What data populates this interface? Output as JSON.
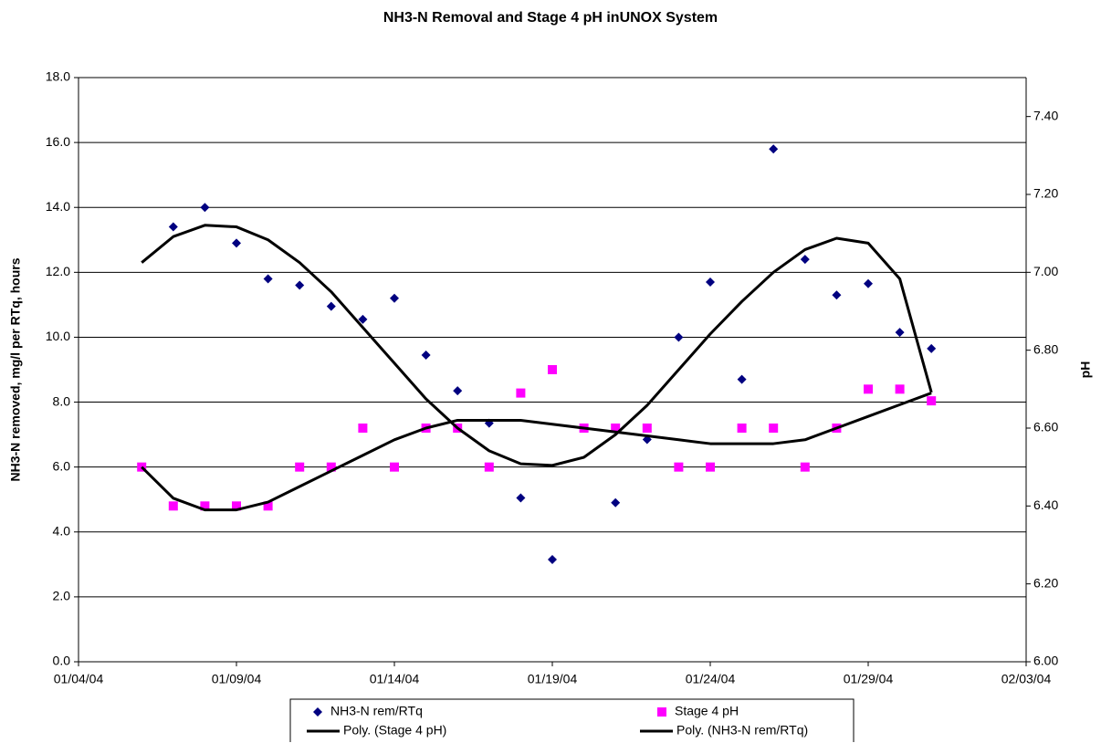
{
  "chart_data": {
    "type": "scatter",
    "title": "NH3-N Removal and Stage 4 pH inUNOX System",
    "y_label": "NH3-N removed, mg/l per RTq, hours",
    "y2_label": "pH",
    "x": [
      "01/06/04",
      "01/07/04",
      "01/08/04",
      "01/09/04",
      "01/10/04",
      "01/11/04",
      "01/12/04",
      "01/13/04",
      "01/14/04",
      "01/15/04",
      "01/16/04",
      "01/17/04",
      "01/18/04",
      "01/19/04",
      "01/20/04",
      "01/21/04",
      "01/22/04",
      "01/23/04",
      "01/24/04",
      "01/25/04",
      "01/26/04",
      "01/27/04",
      "01/28/04",
      "01/29/04",
      "01/30/04",
      "01/31/04"
    ],
    "xlim": [
      "01/04/04",
      "02/03/04"
    ],
    "xticks": [
      "01/04/04",
      "01/09/04",
      "01/14/04",
      "01/19/04",
      "01/24/04",
      "01/29/04",
      "02/03/04"
    ],
    "ylim": [
      0,
      18
    ],
    "yticks": [
      {
        "value": 0,
        "label": "0.0"
      },
      {
        "value": 2,
        "label": "2.0"
      },
      {
        "value": 4,
        "label": "4.0"
      },
      {
        "value": 6,
        "label": "6.0"
      },
      {
        "value": 8,
        "label": "8.0"
      },
      {
        "value": 10,
        "label": "10.0"
      },
      {
        "value": 12,
        "label": "12.0"
      },
      {
        "value": 14,
        "label": "14.0"
      },
      {
        "value": 16,
        "label": "16.0"
      },
      {
        "value": 18,
        "label": "18.0"
      }
    ],
    "y2lim": [
      6,
      7.5
    ],
    "y2ticks": [
      {
        "value": 6,
        "label": "6.00"
      },
      {
        "value": 6.2,
        "label": "6.20"
      },
      {
        "value": 6.4,
        "label": "6.40"
      },
      {
        "value": 6.6,
        "label": "6.60"
      },
      {
        "value": 6.8,
        "label": "6.80"
      },
      {
        "value": 7,
        "label": "7.00"
      },
      {
        "value": 7.2,
        "label": "7.20"
      },
      {
        "value": 7.4,
        "label": "7.40"
      }
    ],
    "grid": true,
    "legend": "bottom",
    "series": [
      {
        "name": "NH3-N rem/RTq",
        "color": "#000080",
        "marker": "diamond",
        "values": [
          null,
          13.4,
          14.0,
          12.9,
          11.8,
          11.6,
          10.95,
          10.55,
          11.2,
          9.45,
          8.35,
          7.35,
          5.05,
          3.15,
          null,
          4.9,
          6.85,
          10.0,
          11.7,
          8.7,
          15.8,
          12.4,
          11.3,
          11.65,
          10.15,
          9.65
        ]
      },
      {
        "name": "Stage 4 pH",
        "color": "#ff00ff",
        "marker": "square",
        "axis": "y2",
        "values": [
          6.5,
          6.4,
          6.4,
          6.4,
          6.4,
          6.5,
          6.5,
          6.6,
          6.5,
          6.6,
          6.6,
          6.5,
          6.69,
          6.75,
          6.6,
          6.6,
          6.6,
          6.5,
          6.5,
          6.6,
          6.6,
          6.5,
          6.6,
          6.7,
          6.7,
          6.67
        ]
      },
      {
        "name": "Poly. (Stage 4 pH)",
        "color": "#000000",
        "marker": "line",
        "axis": "y2",
        "values": [
          6.5,
          6.42,
          6.39,
          6.39,
          6.41,
          6.45,
          6.49,
          6.53,
          6.57,
          6.6,
          6.62,
          6.62,
          6.62,
          6.61,
          6.6,
          6.59,
          6.58,
          6.57,
          6.56,
          6.56,
          6.56,
          6.57,
          6.6,
          6.63,
          6.66,
          6.69
        ]
      },
      {
        "name": "Poly. (NH3-N rem/RTq)",
        "color": "#000000",
        "marker": "line",
        "values": [
          12.3,
          13.1,
          13.45,
          13.4,
          13.0,
          12.3,
          11.4,
          10.3,
          9.2,
          8.1,
          7.2,
          6.5,
          6.1,
          6.05,
          6.3,
          7.0,
          7.9,
          9.0,
          10.1,
          11.1,
          12.0,
          12.7,
          13.05,
          12.9,
          11.8,
          8.3
        ]
      }
    ]
  }
}
